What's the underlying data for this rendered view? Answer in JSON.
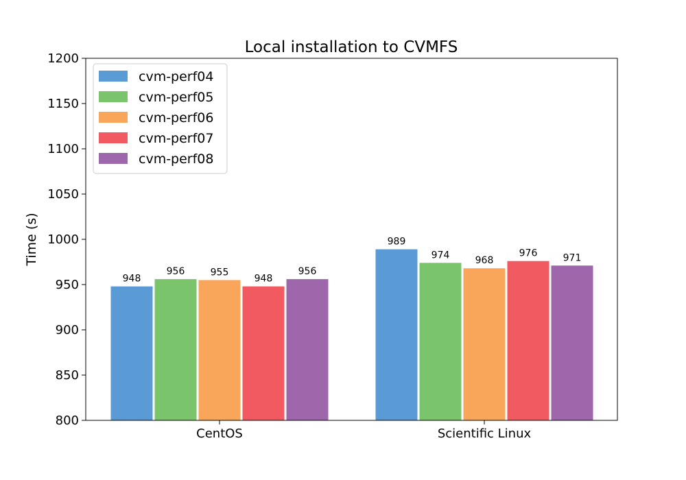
{
  "chart_data": {
    "type": "bar",
    "title": "Local installation to CVMFS",
    "xlabel": "",
    "ylabel": "Time (s)",
    "categories": [
      "CentOS",
      "Scientific Linux"
    ],
    "ylim": [
      800,
      1200
    ],
    "yticks": [
      800,
      850,
      900,
      950,
      1000,
      1050,
      1100,
      1150,
      1200
    ],
    "grid": false,
    "legend_position": "top-left",
    "series": [
      {
        "name": "cvm-perf04",
        "color": "#5b9bd5",
        "values": [
          948,
          989
        ]
      },
      {
        "name": "cvm-perf05",
        "color": "#7ac46b",
        "values": [
          956,
          974
        ]
      },
      {
        "name": "cvm-perf06",
        "color": "#f9a65a",
        "values": [
          955,
          968
        ]
      },
      {
        "name": "cvm-perf07",
        "color": "#f15a60",
        "values": [
          948,
          976
        ]
      },
      {
        "name": "cvm-perf08",
        "color": "#9e67ab",
        "values": [
          956,
          971
        ]
      }
    ]
  }
}
